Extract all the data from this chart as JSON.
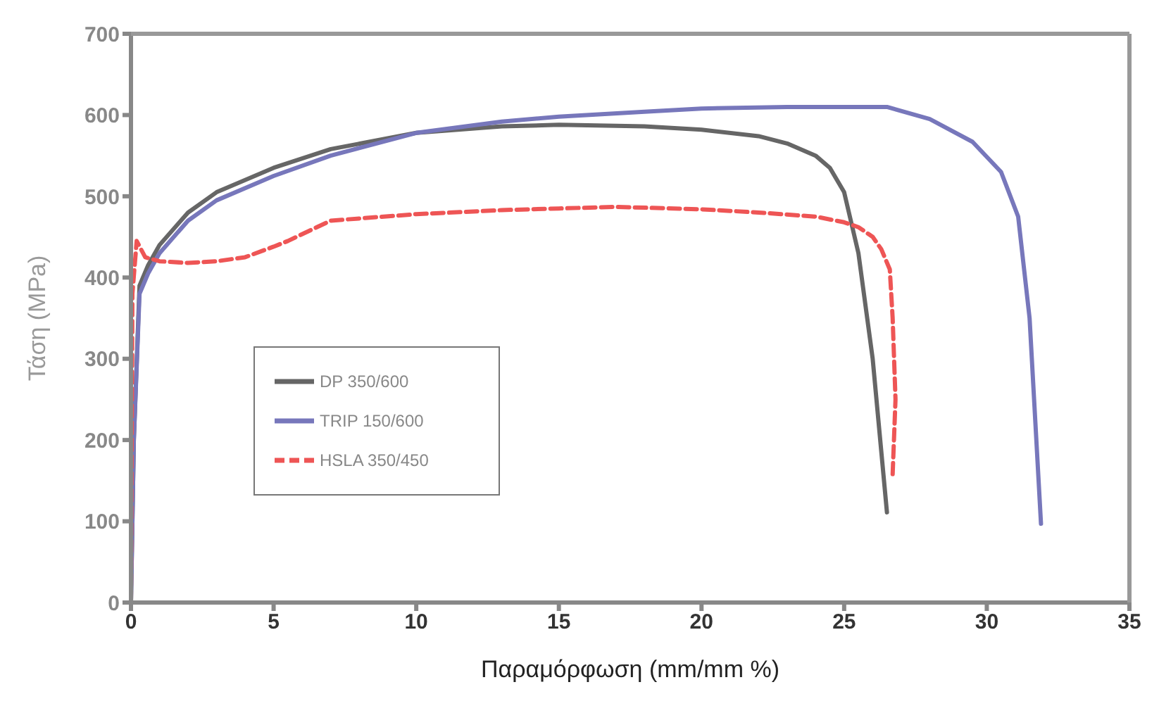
{
  "chart_data": {
    "type": "line",
    "xlabel": "Παραμόρφωση (mm/mm %)",
    "ylabel": "Τάση (MPa)",
    "xlim": [
      0,
      35
    ],
    "xticks": [
      0,
      5,
      10,
      15,
      20,
      25,
      30,
      35
    ],
    "ylim": [
      0,
      700
    ],
    "yticks": [
      0,
      100,
      200,
      300,
      400,
      500,
      600,
      700
    ],
    "grid": false,
    "legend": "bottom left",
    "marker": "none",
    "series": [
      {
        "name": "DP 350/600",
        "color": "#666666",
        "line_style": "solid",
        "x": [
          0,
          0.1,
          0.3,
          0.6,
          1,
          2,
          3,
          5,
          7,
          10,
          13,
          15,
          18,
          20,
          22,
          23,
          24,
          24.5,
          25,
          25.5,
          26,
          26.5
        ],
        "values": [
          0,
          200,
          390,
          415,
          440,
          480,
          505,
          535,
          558,
          578,
          586,
          588,
          586,
          582,
          574,
          565,
          550,
          535,
          505,
          430,
          300,
          111
        ]
      },
      {
        "name": "TRIP 150/600",
        "color": "#7777bb",
        "line_style": "solid",
        "x": [
          0,
          0.1,
          0.3,
          0.6,
          1,
          2,
          3,
          5,
          7,
          10,
          13,
          15,
          18,
          20,
          23,
          25,
          26.5,
          28,
          29.5,
          30.5,
          31.1,
          31.5,
          31.9
        ],
        "values": [
          0,
          200,
          380,
          405,
          430,
          470,
          495,
          525,
          550,
          578,
          592,
          598,
          604,
          608,
          610,
          610,
          610,
          595,
          567,
          530,
          475,
          350,
          97
        ]
      },
      {
        "name": "HSLA 350/450",
        "color": "#ee5555",
        "line_style": "dashed",
        "x": [
          0,
          0.05,
          0.2,
          0.5,
          1,
          2,
          3,
          4,
          5,
          5.5,
          7,
          10,
          13,
          15,
          17,
          20,
          22,
          24,
          25,
          25.5,
          26,
          26.3,
          26.6,
          26.7,
          26.8,
          26.7
        ],
        "values": [
          0,
          380,
          445,
          425,
          420,
          418,
          420,
          425,
          438,
          445,
          470,
          478,
          483,
          485,
          487,
          484,
          480,
          475,
          468,
          462,
          450,
          435,
          410,
          350,
          250,
          158
        ]
      }
    ]
  }
}
